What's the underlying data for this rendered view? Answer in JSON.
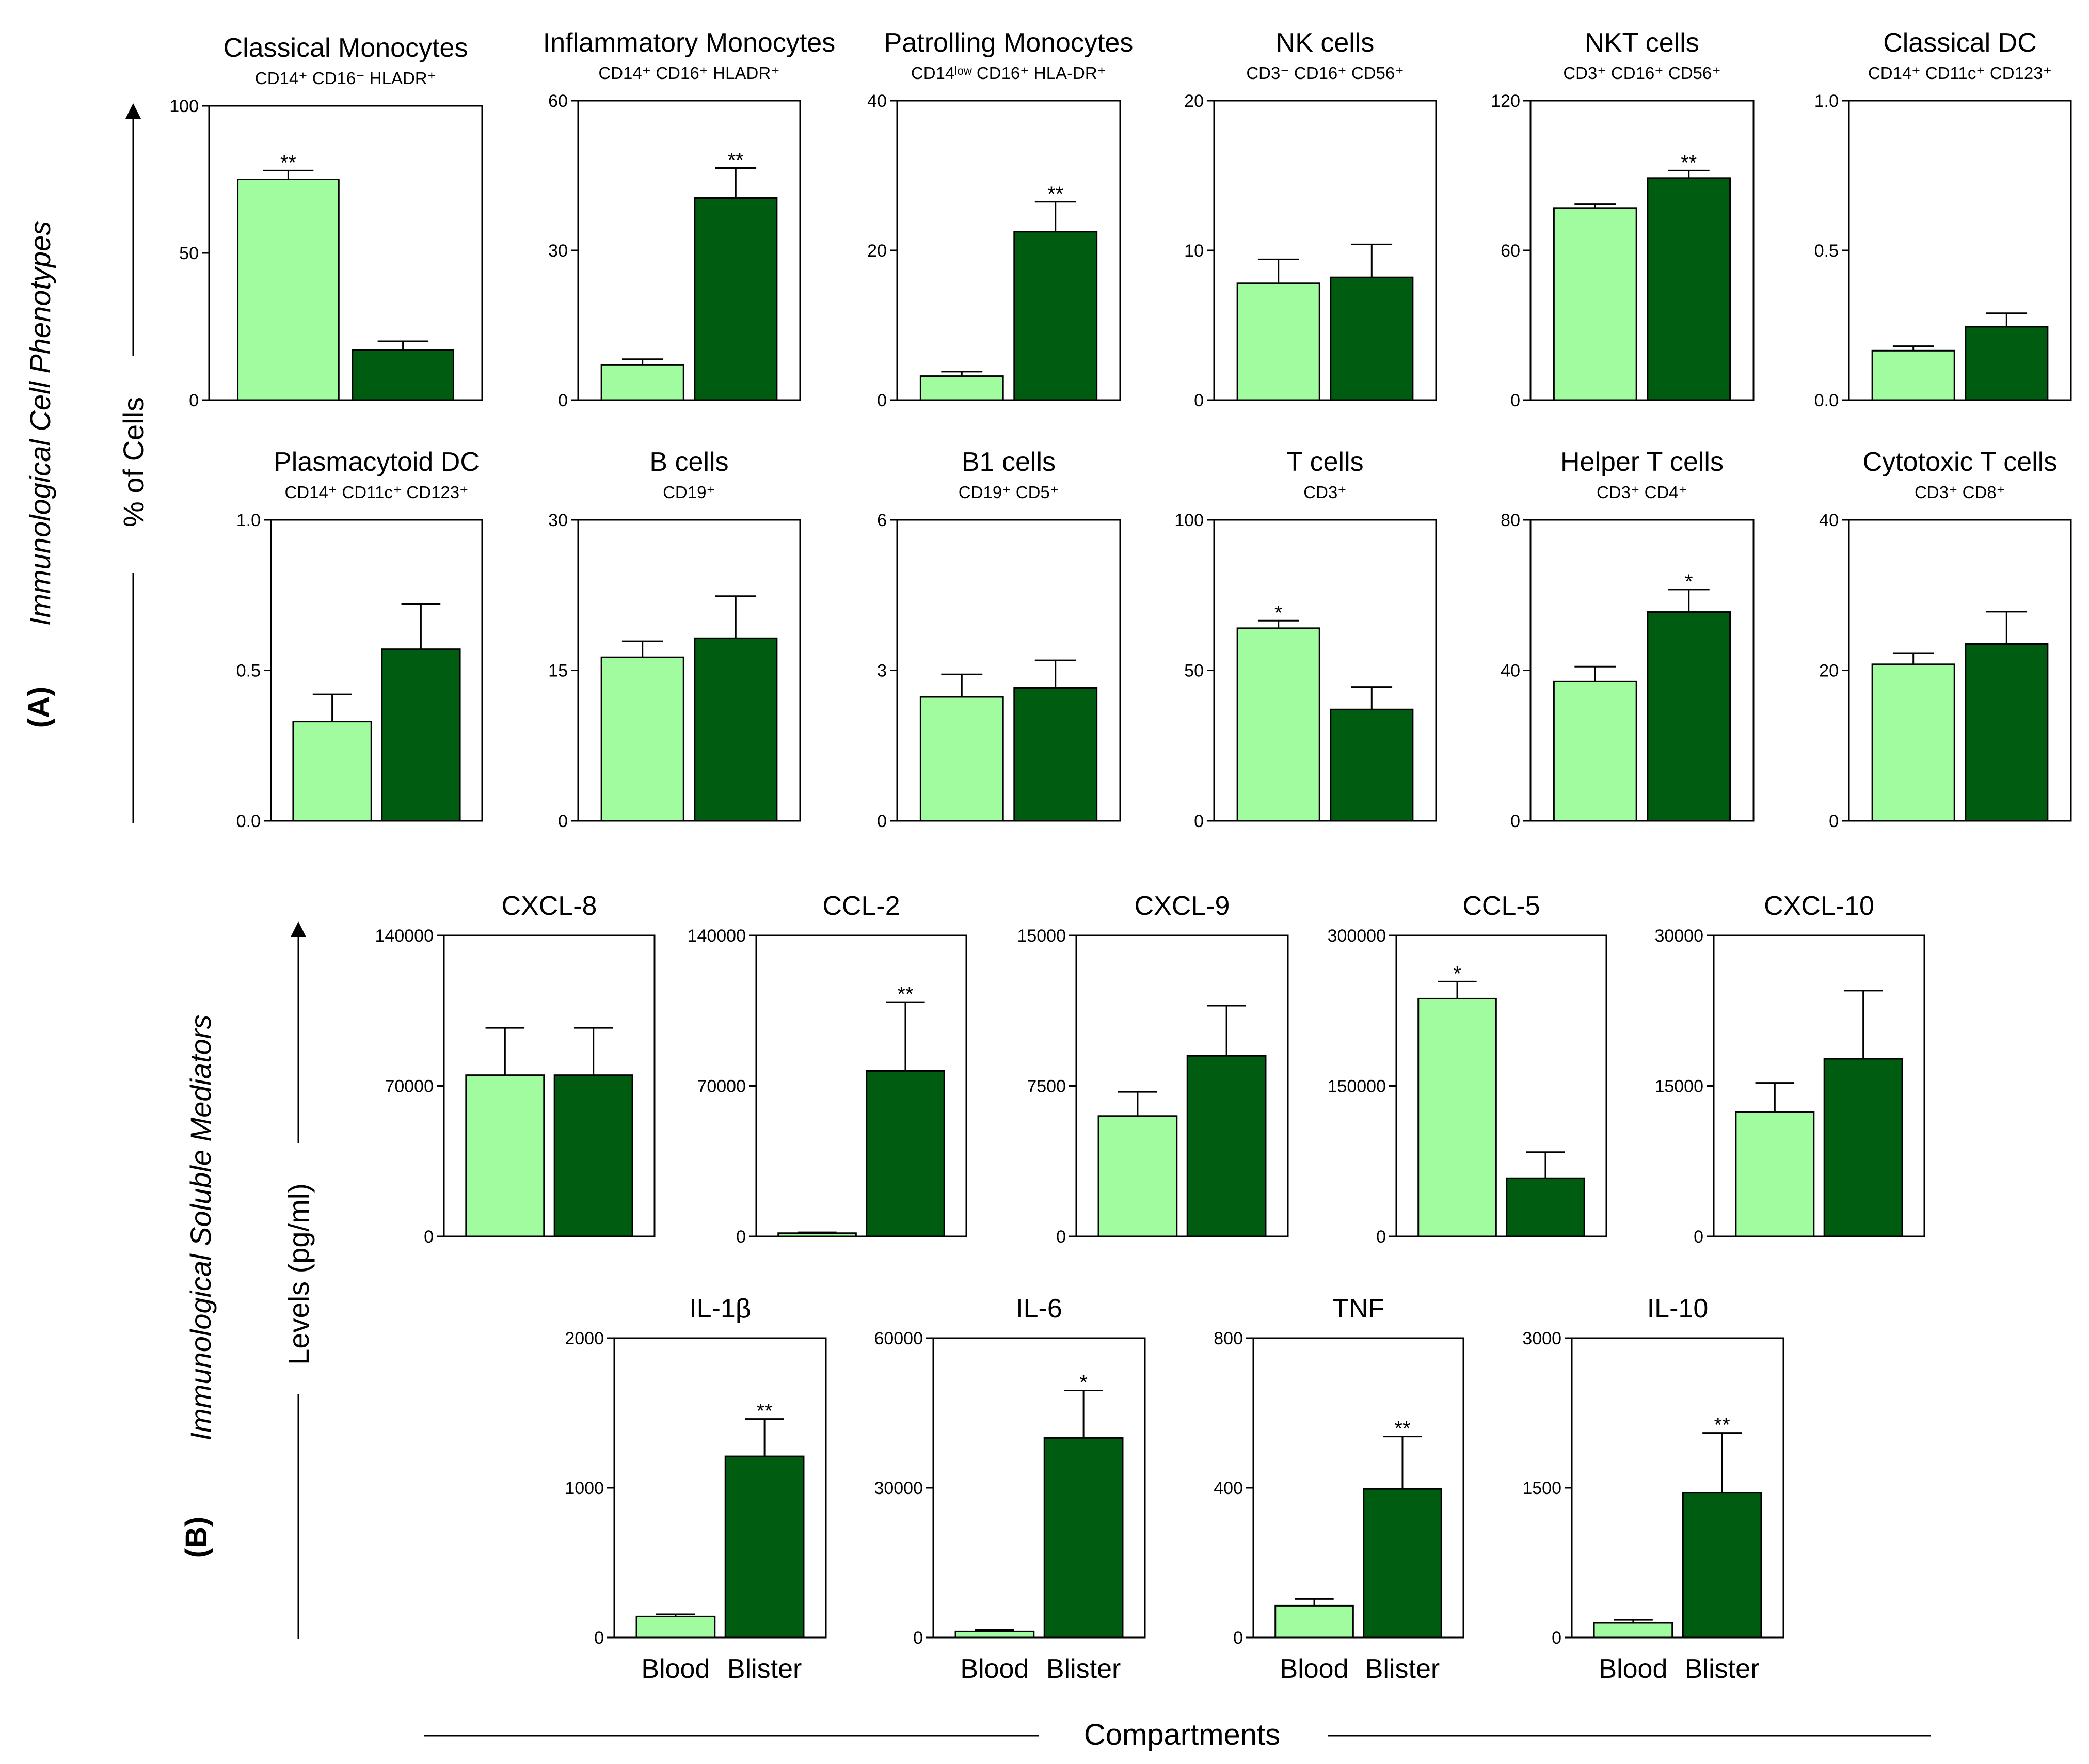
{
  "colors": {
    "blood": "#a1fc9f",
    "blister": "#005c11",
    "outline": "#000000"
  },
  "sections": {
    "a": {
      "panel_label": "(A)",
      "group_label": "Immunological Cell Phenotypes",
      "axis_label": "% of Cells"
    },
    "b": {
      "panel_label": "(B)",
      "group_label": "Immunological Soluble Mediators",
      "axis_label": "Levels (pg/ml)"
    }
  },
  "x_axis": {
    "label": "Compartments",
    "categories": [
      "Blood",
      "Blister"
    ]
  },
  "chart_data": [
    {
      "id": "classical-monocytes",
      "type": "bar",
      "title": "Classical Monocytes",
      "subtitle": "CD14⁺ CD16⁻ HLADR⁺",
      "ylim": [
        0,
        100
      ],
      "yticks": [
        "0",
        "50",
        "100"
      ],
      "categories": [
        "Blood",
        "Blister"
      ],
      "values": [
        75,
        17
      ],
      "errors": [
        3,
        3
      ],
      "sig": "**",
      "sig_on": 0
    },
    {
      "id": "inflammatory-monocytes",
      "type": "bar",
      "title": "Inflammatory Monocytes",
      "subtitle": "CD14⁺ CD16⁺ HLADR⁺",
      "ylim": [
        0,
        60
      ],
      "yticks": [
        "0",
        "30",
        "60"
      ],
      "categories": [
        "Blood",
        "Blister"
      ],
      "values": [
        7,
        40.5
      ],
      "errors": [
        1.2,
        6
      ],
      "sig": "**",
      "sig_on": 1
    },
    {
      "id": "patrolling-monocytes",
      "type": "bar",
      "title": "Patrolling Monocytes",
      "subtitle": "CD14ˡᵒʷ CD16⁺ HLA-DR⁺",
      "ylim": [
        0,
        40
      ],
      "yticks": [
        "0",
        "20",
        "40"
      ],
      "categories": [
        "Blood",
        "Blister"
      ],
      "values": [
        3.2,
        22.5
      ],
      "errors": [
        0.6,
        4
      ],
      "sig": "**",
      "sig_on": 1
    },
    {
      "id": "nk-cells",
      "type": "bar",
      "title": "NK cells",
      "subtitle": "CD3⁻ CD16⁺ CD56⁺",
      "ylim": [
        0,
        20
      ],
      "yticks": [
        "0",
        "10",
        "20"
      ],
      "categories": [
        "Blood",
        "Blister"
      ],
      "values": [
        7.8,
        8.2
      ],
      "errors": [
        1.6,
        2.2
      ],
      "sig": "",
      "sig_on": 1
    },
    {
      "id": "nkt-cells",
      "type": "bar",
      "title": "NKT cells",
      "subtitle": "CD3⁺ CD16⁺ CD56⁺",
      "ylim": [
        0,
        120
      ],
      "yticks": [
        "0",
        "60",
        "120"
      ],
      "categories": [
        "Blood",
        "Blister"
      ],
      "values": [
        77,
        89
      ],
      "errors": [
        1.5,
        3
      ],
      "sig": "**",
      "sig_on": 1
    },
    {
      "id": "classical-dc",
      "type": "bar",
      "title": "Classical DC",
      "subtitle": "CD14⁺ CD11c⁺ CD123⁺",
      "ylim": [
        0,
        1
      ],
      "yticks": [
        "0.0",
        "0.5",
        "1.0"
      ],
      "categories": [
        "Blood",
        "Blister"
      ],
      "values": [
        0.165,
        0.245
      ],
      "errors": [
        0.015,
        0.045
      ],
      "sig": "",
      "sig_on": 1
    },
    {
      "id": "plasmacytoid-dc",
      "type": "bar",
      "title": "Plasmacytoid DC",
      "subtitle": "CD14⁺ CD11c⁺ CD123⁺",
      "ylim": [
        0,
        1
      ],
      "yticks": [
        "0.0",
        "0.5",
        "1.0"
      ],
      "categories": [
        "Blood",
        "Blister"
      ],
      "values": [
        0.33,
        0.57
      ],
      "errors": [
        0.09,
        0.15
      ],
      "sig": "",
      "sig_on": 1
    },
    {
      "id": "b-cells",
      "type": "bar",
      "title": "B cells",
      "subtitle": "CD19⁺",
      "ylim": [
        0,
        30
      ],
      "yticks": [
        "0",
        "15",
        "30"
      ],
      "categories": [
        "Blood",
        "Blister"
      ],
      "values": [
        16.3,
        18.2
      ],
      "errors": [
        1.6,
        4.2
      ],
      "sig": "",
      "sig_on": 1
    },
    {
      "id": "b1-cells",
      "type": "bar",
      "title": "B1 cells",
      "subtitle": "CD19⁺ CD5⁺",
      "ylim": [
        0,
        6
      ],
      "yticks": [
        "0",
        "3",
        "6"
      ],
      "categories": [
        "Blood",
        "Blister"
      ],
      "values": [
        2.47,
        2.65
      ],
      "errors": [
        0.45,
        0.55
      ],
      "sig": "",
      "sig_on": 1
    },
    {
      "id": "t-cells",
      "type": "bar",
      "title": "T cells",
      "subtitle": "CD3⁺",
      "ylim": [
        0,
        100
      ],
      "yticks": [
        "0",
        "50",
        "100"
      ],
      "categories": [
        "Blood",
        "Blister"
      ],
      "values": [
        64,
        37
      ],
      "errors": [
        2.5,
        7.5
      ],
      "sig": "*",
      "sig_on": 0
    },
    {
      "id": "helper-t-cells",
      "type": "bar",
      "title": "Helper T cells",
      "subtitle": "CD3⁺ CD4⁺",
      "ylim": [
        0,
        80
      ],
      "yticks": [
        "0",
        "40",
        "80"
      ],
      "categories": [
        "Blood",
        "Blister"
      ],
      "values": [
        37,
        55.5
      ],
      "errors": [
        4,
        6
      ],
      "sig": "*",
      "sig_on": 1
    },
    {
      "id": "cytotoxic-t-cells",
      "type": "bar",
      "title": "Cytotoxic T cells",
      "subtitle": "CD3⁺ CD8⁺",
      "ylim": [
        0,
        40
      ],
      "yticks": [
        "0",
        "20",
        "40"
      ],
      "categories": [
        "Blood",
        "Blister"
      ],
      "values": [
        20.8,
        23.5
      ],
      "errors": [
        1.5,
        4.3
      ],
      "sig": "",
      "sig_on": 1
    },
    {
      "id": "cxcl-8",
      "type": "bar",
      "title": "CXCL-8",
      "subtitle": "",
      "ylim": [
        0,
        140000
      ],
      "yticks": [
        "0",
        "70000",
        "140000"
      ],
      "categories": [
        "Blood",
        "Blister"
      ],
      "values": [
        75000,
        75000
      ],
      "errors": [
        22000,
        22000
      ],
      "sig": "",
      "sig_on": 1
    },
    {
      "id": "ccl-2",
      "type": "bar",
      "title": "CCL-2",
      "subtitle": "",
      "ylim": [
        0,
        140000
      ],
      "yticks": [
        "0",
        "70000",
        "140000"
      ],
      "categories": [
        "Blood",
        "Blister"
      ],
      "values": [
        1500,
        77000
      ],
      "errors": [
        400,
        32000
      ],
      "sig": "**",
      "sig_on": 1
    },
    {
      "id": "cxcl-9",
      "type": "bar",
      "title": "CXCL-9",
      "subtitle": "",
      "ylim": [
        0,
        15000
      ],
      "yticks": [
        "0",
        "7500",
        "15000"
      ],
      "categories": [
        "Blood",
        "Blister"
      ],
      "values": [
        6000,
        9000
      ],
      "errors": [
        1200,
        2500
      ],
      "sig": "",
      "sig_on": 1
    },
    {
      "id": "ccl-5",
      "type": "bar",
      "title": "CCL-5",
      "subtitle": "",
      "ylim": [
        0,
        300000
      ],
      "yticks": [
        "0",
        "150000",
        "300000"
      ],
      "categories": [
        "Blood",
        "Blister"
      ],
      "values": [
        237000,
        58000
      ],
      "errors": [
        17000,
        26000
      ],
      "sig": "*",
      "sig_on": 0
    },
    {
      "id": "cxcl-10",
      "type": "bar",
      "title": "CXCL-10",
      "subtitle": "",
      "ylim": [
        0,
        30000
      ],
      "yticks": [
        "0",
        "15000",
        "30000"
      ],
      "categories": [
        "Blood",
        "Blister"
      ],
      "values": [
        12400,
        17700
      ],
      "errors": [
        2900,
        6800
      ],
      "sig": "",
      "sig_on": 1
    },
    {
      "id": "il-1b",
      "type": "bar",
      "title": "IL-1β",
      "subtitle": "",
      "ylim": [
        0,
        2000
      ],
      "yticks": [
        "0",
        "1000",
        "2000"
      ],
      "categories": [
        "Blood",
        "Blister"
      ],
      "values": [
        140,
        1210
      ],
      "errors": [
        15,
        250
      ],
      "sig": "**",
      "sig_on": 1
    },
    {
      "id": "il-6",
      "type": "bar",
      "title": "IL-6",
      "subtitle": "",
      "ylim": [
        0,
        60000
      ],
      "yticks": [
        "0",
        "30000",
        "60000"
      ],
      "categories": [
        "Blood",
        "Blister"
      ],
      "values": [
        1200,
        40000
      ],
      "errors": [
        300,
        9500
      ],
      "sig": "*",
      "sig_on": 1
    },
    {
      "id": "tnf",
      "type": "bar",
      "title": "TNF",
      "subtitle": "",
      "ylim": [
        0,
        800
      ],
      "yticks": [
        "0",
        "400",
        "800"
      ],
      "categories": [
        "Blood",
        "Blister"
      ],
      "values": [
        85,
        397
      ],
      "errors": [
        18,
        140
      ],
      "sig": "**",
      "sig_on": 1
    },
    {
      "id": "il-10",
      "type": "bar",
      "title": "IL-10",
      "subtitle": "",
      "ylim": [
        0,
        3000
      ],
      "yticks": [
        "0",
        "1500",
        "3000"
      ],
      "categories": [
        "Blood",
        "Blister"
      ],
      "values": [
        150,
        1450
      ],
      "errors": [
        25,
        600
      ],
      "sig": "**",
      "sig_on": 1
    }
  ]
}
